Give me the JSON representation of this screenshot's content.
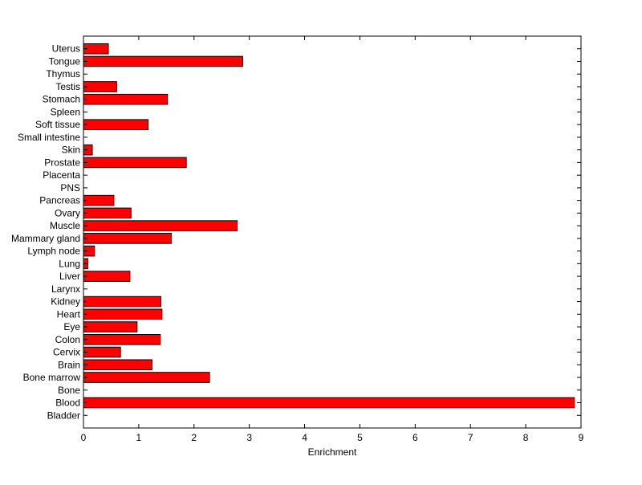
{
  "chart_data": {
    "type": "bar",
    "orientation": "horizontal",
    "title": "",
    "xlabel": "Enrichment",
    "ylabel": "",
    "xlim": [
      0,
      9
    ],
    "xticks": [
      0,
      1,
      2,
      3,
      4,
      5,
      6,
      7,
      8,
      9
    ],
    "grid": false,
    "legend": "none",
    "bar_color": "#ff0000",
    "bar_edge_color": "#000000",
    "categories": [
      "Bladder",
      "Blood",
      "Bone",
      "Bone marrow",
      "Brain",
      "Cervix",
      "Colon",
      "Eye",
      "Heart",
      "Kidney",
      "Larynx",
      "Liver",
      "Lung",
      "Lymph node",
      "Mammary gland",
      "Muscle",
      "Ovary",
      "Pancreas",
      "PNS",
      "Placenta",
      "Prostate",
      "Skin",
      "Small intestine",
      "Soft tissue",
      "Spleen",
      "Stomach",
      "Testis",
      "Thymus",
      "Tongue",
      "Uterus"
    ],
    "values": [
      0,
      8.88,
      0,
      2.28,
      1.24,
      0.67,
      1.39,
      0.97,
      1.42,
      1.4,
      0,
      0.84,
      0.08,
      0.2,
      1.59,
      2.78,
      0.86,
      0.55,
      0,
      0,
      1.86,
      0.16,
      0,
      1.17,
      0,
      1.52,
      0.6,
      0,
      2.88,
      0.45
    ]
  }
}
